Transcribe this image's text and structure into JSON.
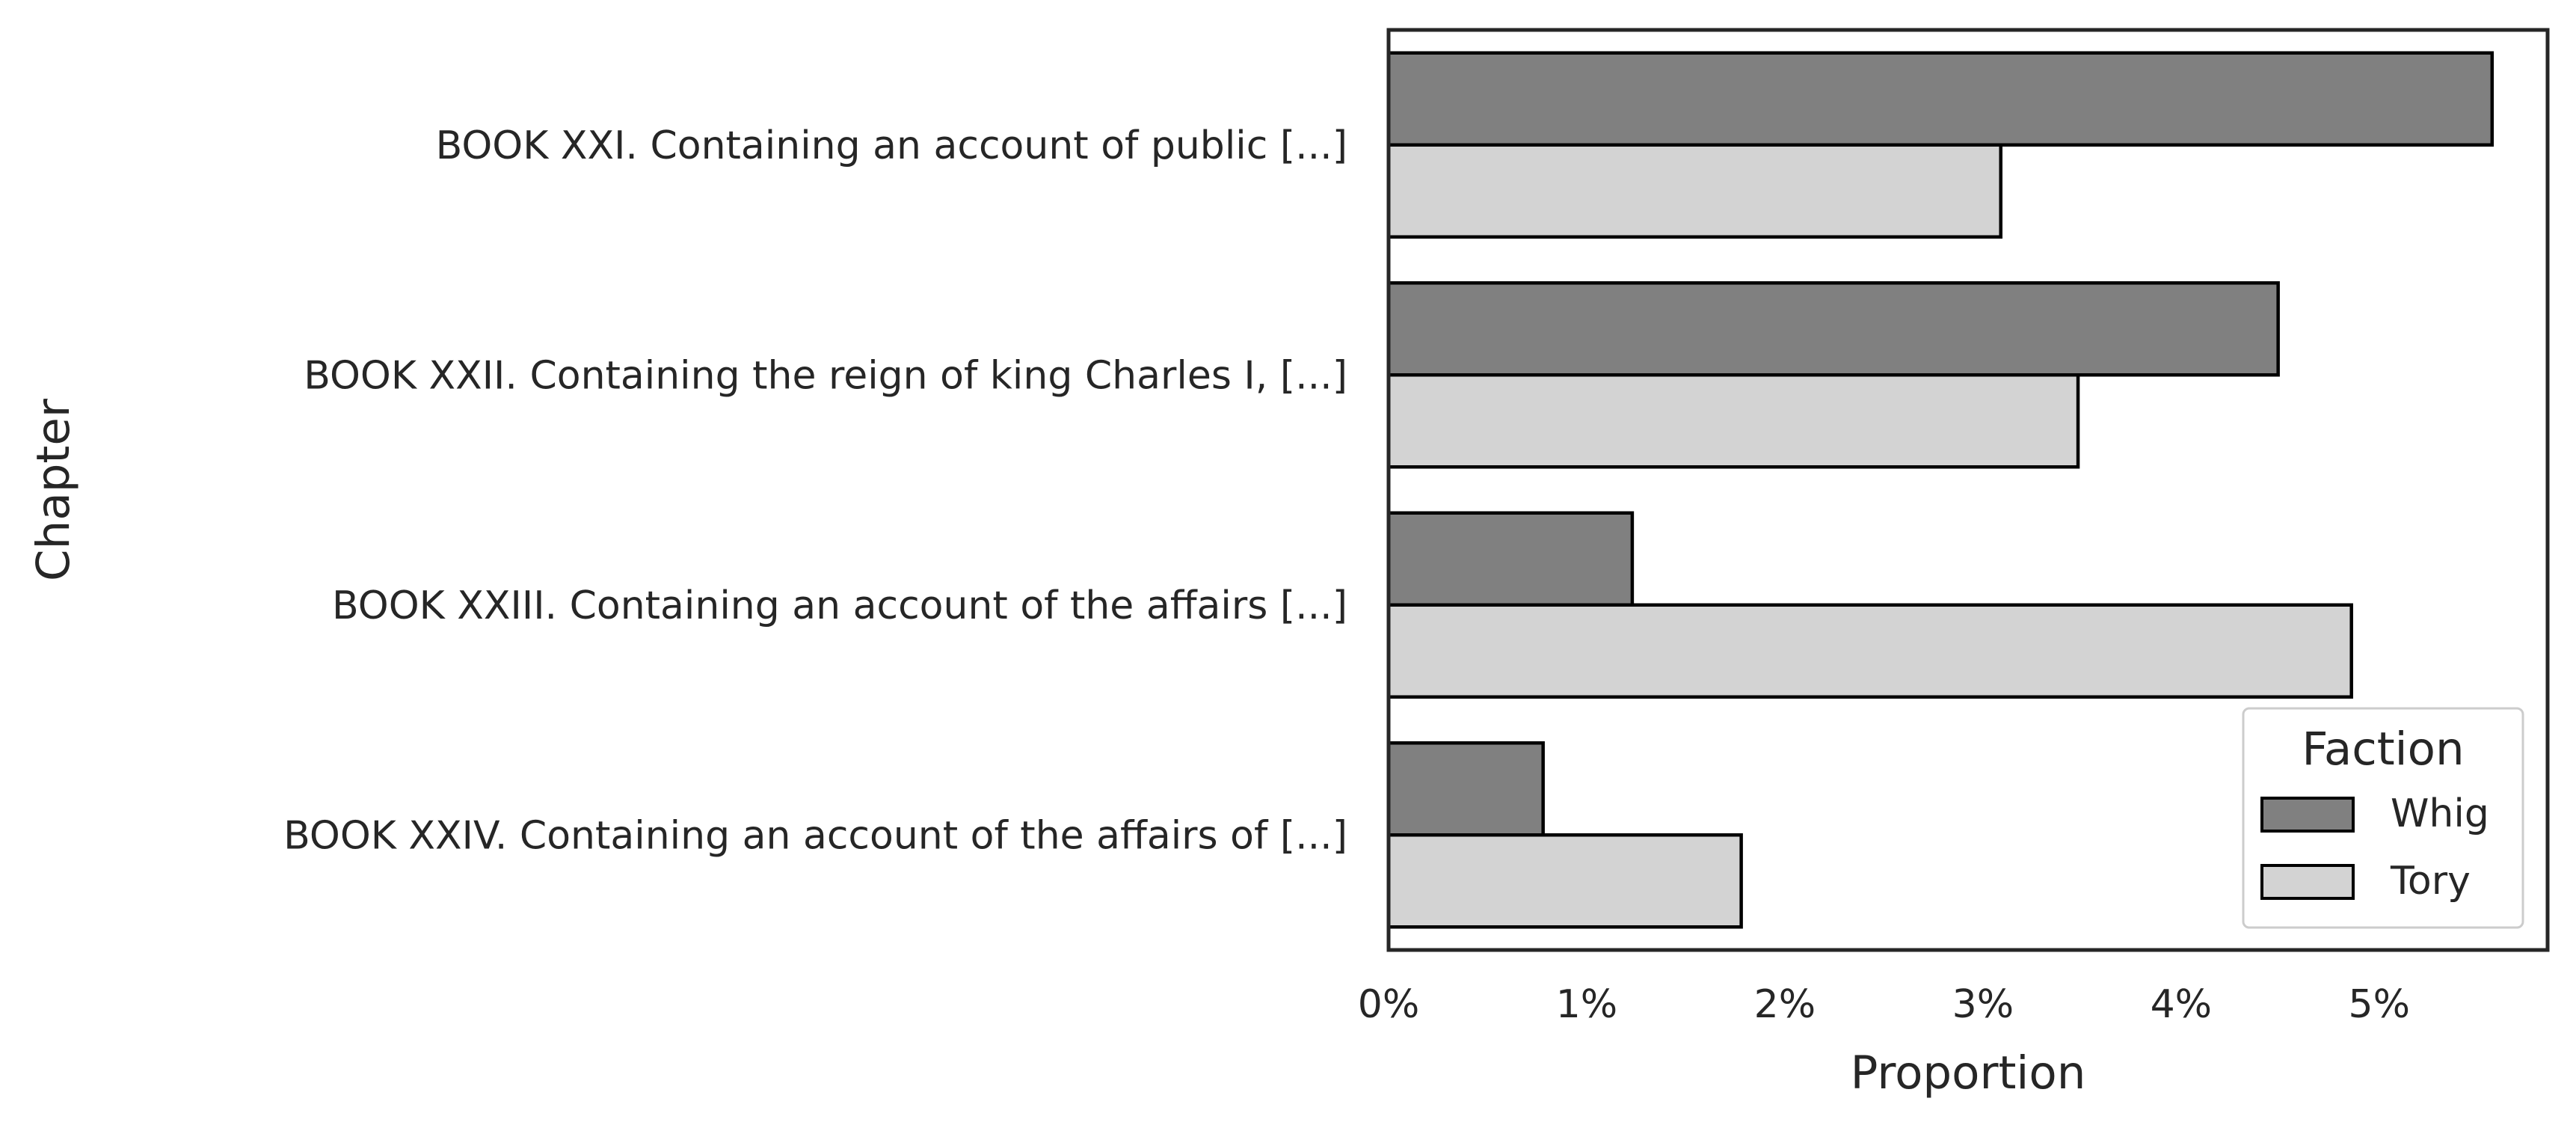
{
  "chart_data": {
    "type": "bar",
    "orientation": "horizontal",
    "categories": [
      "BOOK XXI. Containing an account of public [...]",
      "BOOK XXII. Containing the reign of king Charles I, [...]",
      "BOOK XXIII. Containing an account of the affairs [...]",
      "BOOK XXIV. Containing an account of the affairs of [...]"
    ],
    "series": [
      {
        "name": "Whig",
        "values": [
          5.57,
          4.49,
          1.23,
          0.78
        ],
        "color": "#808080"
      },
      {
        "name": "Tory",
        "values": [
          3.09,
          3.48,
          4.86,
          1.78
        ],
        "color": "#d3d3d3"
      }
    ],
    "xlabel": "Proportion",
    "ylabel": "Chapter",
    "xlim": [
      0,
      5.85
    ],
    "xticks": [
      0,
      1,
      2,
      3,
      4,
      5
    ],
    "xtick_labels": [
      "0%",
      "1%",
      "2%",
      "3%",
      "4%",
      "5%"
    ],
    "legend": {
      "title": "Faction",
      "position": "lower-right"
    },
    "grid": false,
    "edge_color": "#000000",
    "axis_color": "#262626"
  }
}
